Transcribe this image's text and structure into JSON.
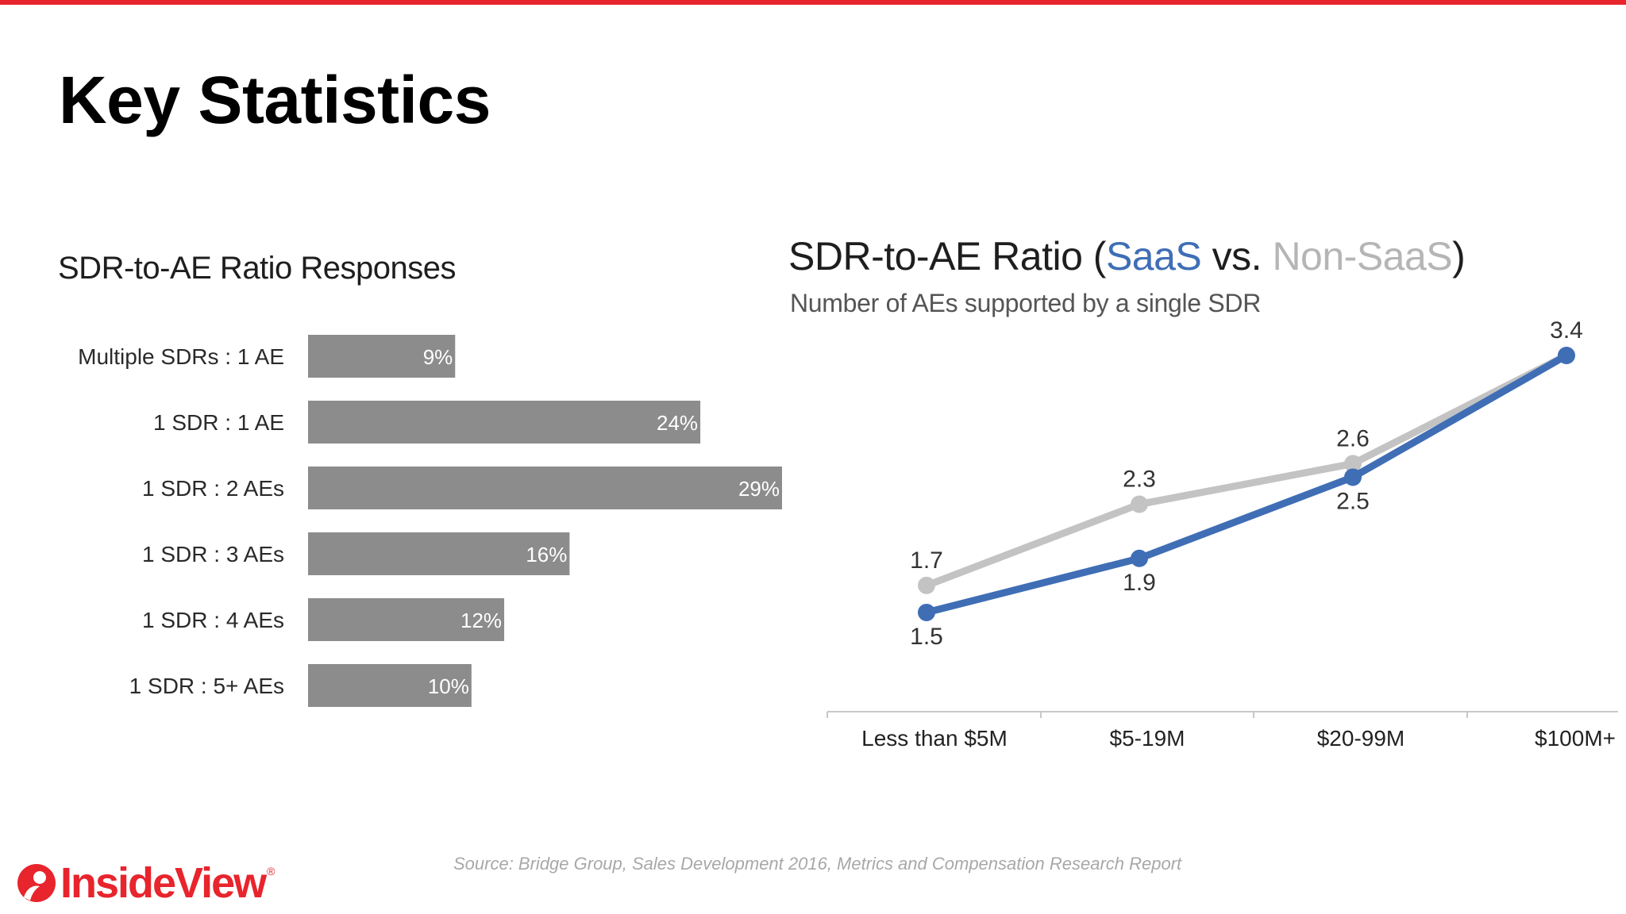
{
  "page": {
    "title": "Key Statistics",
    "source": "Source: Bridge Group, Sales Development 2016, Metrics and Compensation Research Report",
    "logo_text": "InsideView",
    "logo_reg": "®",
    "accent_color": "#e8242c"
  },
  "chart_data": [
    {
      "type": "bar",
      "orientation": "horizontal",
      "title": "SDR-to-AE Ratio Responses",
      "categories": [
        "Multiple SDRs : 1 AE",
        "1 SDR : 1 AE",
        "1 SDR : 2 AEs",
        "1 SDR : 3 AEs",
        "1 SDR : 4 AEs",
        "1 SDR : 5+ AEs"
      ],
      "values": [
        9,
        24,
        29,
        16,
        12,
        10
      ],
      "value_labels": [
        "9%",
        "24%",
        "29%",
        "16%",
        "12%",
        "10%"
      ],
      "xlim": [
        0,
        29
      ],
      "bar_color": "#8c8c8c"
    },
    {
      "type": "line",
      "title_prefix": "SDR-to-AE Ratio (",
      "title_saas": "SaaS",
      "title_vs": " vs. ",
      "title_nonsaas": "Non-SaaS",
      "title_suffix": ")",
      "subtitle": "Number of AEs supported by a single SDR",
      "categories": [
        "Less than $5M",
        "$5-19M",
        "$20-99M",
        "$100M+"
      ],
      "series": [
        {
          "name": "Non-SaaS",
          "values": [
            1.7,
            2.3,
            2.6,
            3.4
          ],
          "labels": [
            "1.7",
            "2.3",
            "2.6",
            "3.4"
          ],
          "color": "#c3c3c3"
        },
        {
          "name": "SaaS",
          "values": [
            1.5,
            1.9,
            2.5,
            3.4
          ],
          "labels": [
            "1.5",
            "1.9",
            "2.5",
            ""
          ],
          "color": "#3f6eb5"
        }
      ],
      "ylim": [
        1.4,
        3.5
      ],
      "grid": false
    }
  ]
}
